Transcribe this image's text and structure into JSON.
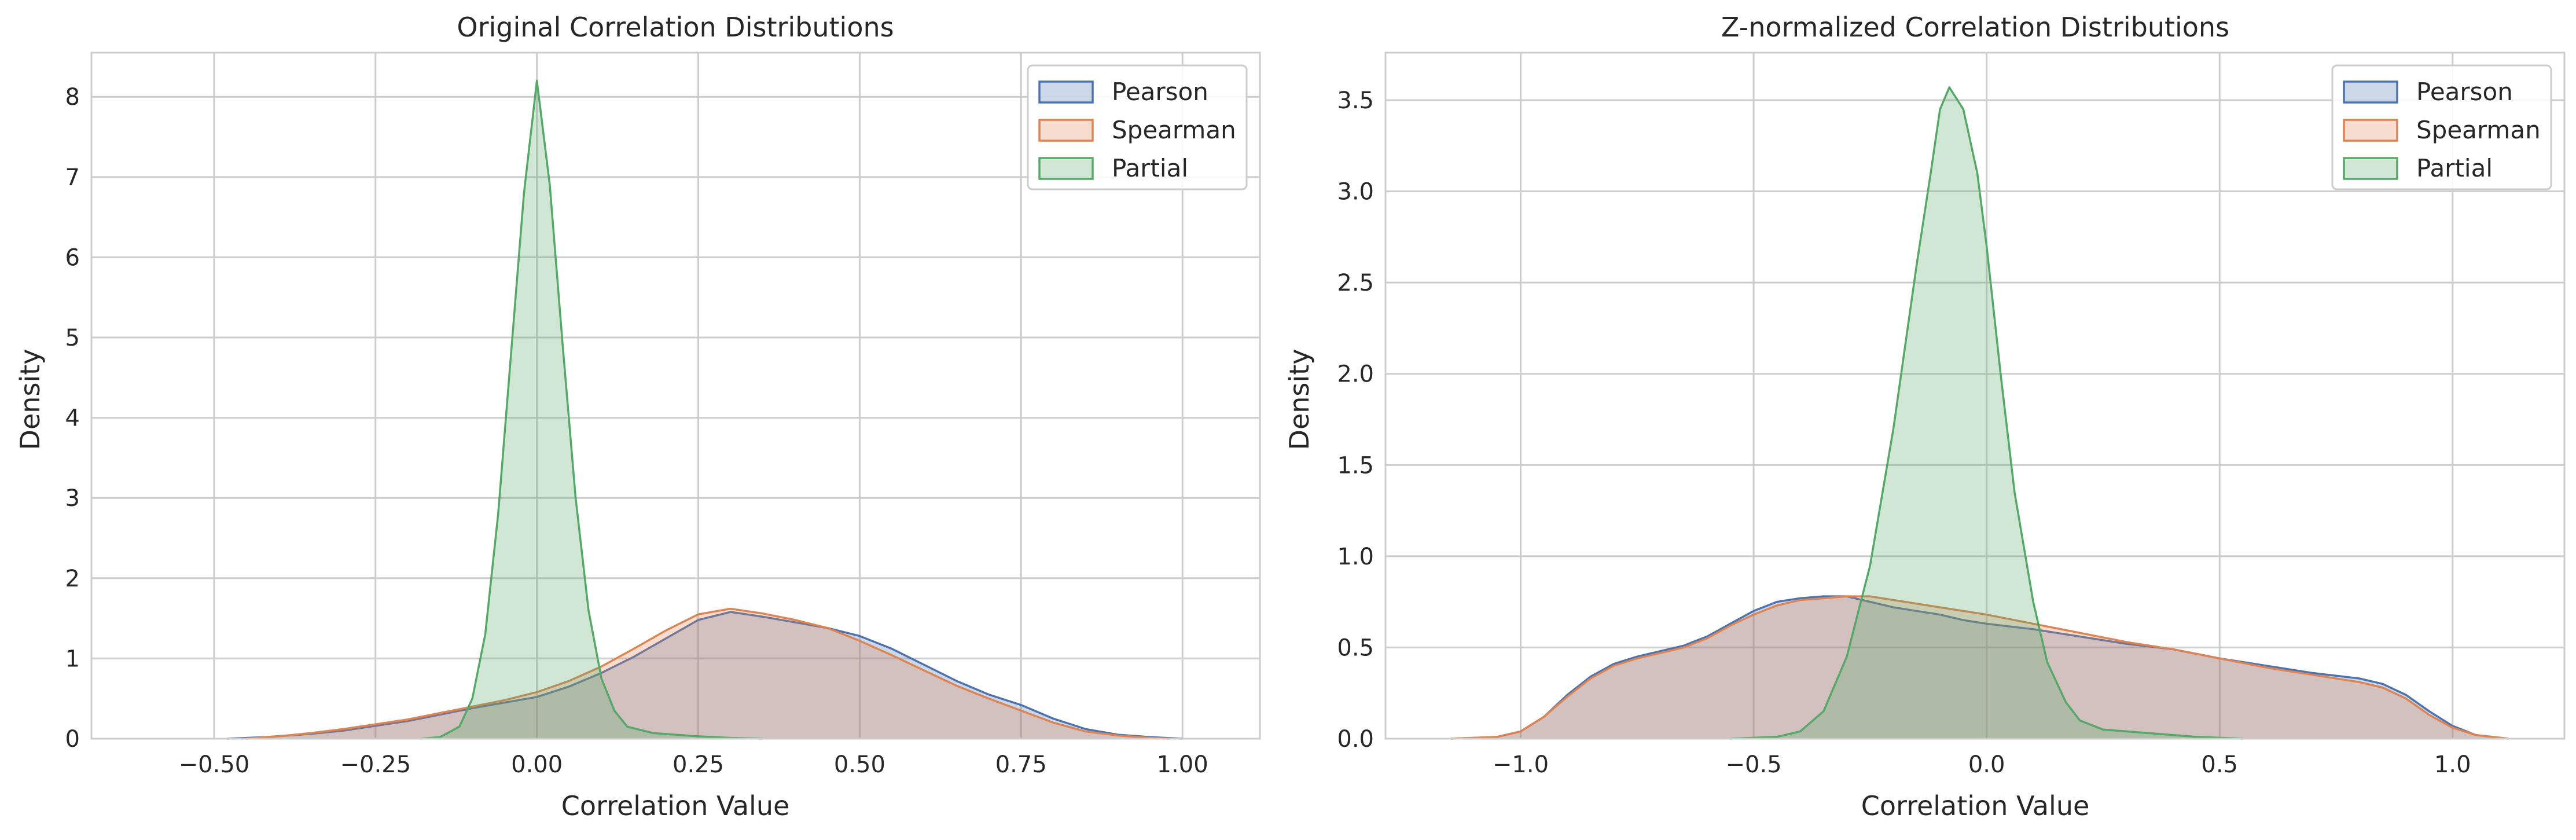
{
  "chart_data": [
    {
      "type": "area",
      "title": "Original Correlation Distributions",
      "xlabel": "Correlation Value",
      "ylabel": "Density",
      "xlim": [
        -0.69,
        1.12
      ],
      "ylim": [
        0,
        8.55
      ],
      "xticks": [
        -0.5,
        -0.25,
        0.0,
        0.25,
        0.5,
        0.75,
        1.0
      ],
      "xtick_labels": [
        "−0.50",
        "−0.25",
        "0.00",
        "0.25",
        "0.50",
        "0.75",
        "1.00"
      ],
      "yticks": [
        0,
        1,
        2,
        3,
        4,
        5,
        6,
        7,
        8
      ],
      "ytick_labels": [
        "0",
        "1",
        "2",
        "3",
        "4",
        "5",
        "6",
        "7",
        "8"
      ],
      "grid": true,
      "legend_position": "top-right",
      "series": [
        {
          "name": "Pearson",
          "color": "#4c72b0",
          "points": [
            [
              -0.48,
              0
            ],
            [
              -0.42,
              0.02
            ],
            [
              -0.35,
              0.06
            ],
            [
              -0.3,
              0.1
            ],
            [
              -0.25,
              0.16
            ],
            [
              -0.2,
              0.22
            ],
            [
              -0.15,
              0.3
            ],
            [
              -0.1,
              0.38
            ],
            [
              -0.05,
              0.45
            ],
            [
              0.0,
              0.52
            ],
            [
              0.05,
              0.65
            ],
            [
              0.1,
              0.82
            ],
            [
              0.15,
              1.02
            ],
            [
              0.2,
              1.25
            ],
            [
              0.25,
              1.48
            ],
            [
              0.3,
              1.58
            ],
            [
              0.35,
              1.52
            ],
            [
              0.4,
              1.45
            ],
            [
              0.45,
              1.38
            ],
            [
              0.5,
              1.28
            ],
            [
              0.55,
              1.12
            ],
            [
              0.6,
              0.92
            ],
            [
              0.65,
              0.72
            ],
            [
              0.7,
              0.55
            ],
            [
              0.75,
              0.42
            ],
            [
              0.8,
              0.25
            ],
            [
              0.85,
              0.12
            ],
            [
              0.9,
              0.05
            ],
            [
              0.95,
              0.02
            ],
            [
              1.0,
              0
            ]
          ]
        },
        {
          "name": "Spearman",
          "color": "#dd8452",
          "points": [
            [
              -0.45,
              0
            ],
            [
              -0.4,
              0.03
            ],
            [
              -0.35,
              0.07
            ],
            [
              -0.3,
              0.12
            ],
            [
              -0.25,
              0.18
            ],
            [
              -0.2,
              0.24
            ],
            [
              -0.15,
              0.32
            ],
            [
              -0.1,
              0.4
            ],
            [
              -0.05,
              0.48
            ],
            [
              0.0,
              0.58
            ],
            [
              0.05,
              0.72
            ],
            [
              0.1,
              0.9
            ],
            [
              0.15,
              1.12
            ],
            [
              0.2,
              1.35
            ],
            [
              0.25,
              1.55
            ],
            [
              0.3,
              1.62
            ],
            [
              0.35,
              1.56
            ],
            [
              0.4,
              1.48
            ],
            [
              0.45,
              1.38
            ],
            [
              0.5,
              1.22
            ],
            [
              0.55,
              1.04
            ],
            [
              0.6,
              0.85
            ],
            [
              0.65,
              0.66
            ],
            [
              0.7,
              0.5
            ],
            [
              0.75,
              0.35
            ],
            [
              0.8,
              0.2
            ],
            [
              0.85,
              0.09
            ],
            [
              0.9,
              0.04
            ],
            [
              0.95,
              0.01
            ],
            [
              0.98,
              0
            ]
          ]
        },
        {
          "name": "Partial",
          "color": "#55a868",
          "points": [
            [
              -0.18,
              0
            ],
            [
              -0.15,
              0.02
            ],
            [
              -0.12,
              0.15
            ],
            [
              -0.1,
              0.5
            ],
            [
              -0.08,
              1.3
            ],
            [
              -0.06,
              2.8
            ],
            [
              -0.04,
              4.8
            ],
            [
              -0.02,
              6.8
            ],
            [
              0.0,
              8.2
            ],
            [
              0.02,
              6.9
            ],
            [
              0.04,
              4.9
            ],
            [
              0.06,
              3.0
            ],
            [
              0.08,
              1.6
            ],
            [
              0.1,
              0.75
            ],
            [
              0.12,
              0.35
            ],
            [
              0.14,
              0.15
            ],
            [
              0.18,
              0.07
            ],
            [
              0.25,
              0.03
            ],
            [
              0.3,
              0.01
            ],
            [
              0.35,
              0
            ]
          ]
        }
      ]
    },
    {
      "type": "area",
      "title": "Z-normalized Correlation Distributions",
      "xlabel": "Correlation Value",
      "ylabel": "Density",
      "xlim": [
        -1.29,
        1.24
      ],
      "ylim": [
        0,
        3.76
      ],
      "xticks": [
        -1.0,
        -0.5,
        0.0,
        0.5,
        1.0
      ],
      "xtick_labels": [
        "−1.0",
        "−0.5",
        "0.0",
        "0.5",
        "1.0"
      ],
      "yticks": [
        0,
        0.5,
        1.0,
        1.5,
        2.0,
        2.5,
        3.0,
        3.5
      ],
      "ytick_labels": [
        "0.0",
        "0.5",
        "1.0",
        "1.5",
        "2.0",
        "2.5",
        "3.0",
        "3.5"
      ],
      "grid": true,
      "legend_position": "top-right",
      "series": [
        {
          "name": "Pearson",
          "color": "#4c72b0",
          "points": [
            [
              -1.15,
              0
            ],
            [
              -1.05,
              0.01
            ],
            [
              -1.0,
              0.04
            ],
            [
              -0.95,
              0.12
            ],
            [
              -0.9,
              0.24
            ],
            [
              -0.85,
              0.34
            ],
            [
              -0.8,
              0.41
            ],
            [
              -0.75,
              0.45
            ],
            [
              -0.7,
              0.48
            ],
            [
              -0.65,
              0.51
            ],
            [
              -0.6,
              0.56
            ],
            [
              -0.55,
              0.63
            ],
            [
              -0.5,
              0.7
            ],
            [
              -0.45,
              0.75
            ],
            [
              -0.4,
              0.77
            ],
            [
              -0.35,
              0.78
            ],
            [
              -0.3,
              0.78
            ],
            [
              -0.25,
              0.75
            ],
            [
              -0.2,
              0.72
            ],
            [
              -0.1,
              0.68
            ],
            [
              -0.05,
              0.65
            ],
            [
              0.0,
              0.63
            ],
            [
              0.1,
              0.6
            ],
            [
              0.2,
              0.56
            ],
            [
              0.3,
              0.52
            ],
            [
              0.4,
              0.49
            ],
            [
              0.5,
              0.44
            ],
            [
              0.6,
              0.4
            ],
            [
              0.7,
              0.36
            ],
            [
              0.8,
              0.33
            ],
            [
              0.85,
              0.3
            ],
            [
              0.9,
              0.24
            ],
            [
              0.95,
              0.15
            ],
            [
              1.0,
              0.07
            ],
            [
              1.05,
              0.02
            ],
            [
              1.12,
              0
            ]
          ]
        },
        {
          "name": "Spearman",
          "color": "#dd8452",
          "points": [
            [
              -1.15,
              0
            ],
            [
              -1.05,
              0.01
            ],
            [
              -1.0,
              0.04
            ],
            [
              -0.95,
              0.12
            ],
            [
              -0.9,
              0.23
            ],
            [
              -0.85,
              0.33
            ],
            [
              -0.8,
              0.4
            ],
            [
              -0.75,
              0.44
            ],
            [
              -0.7,
              0.47
            ],
            [
              -0.65,
              0.5
            ],
            [
              -0.6,
              0.55
            ],
            [
              -0.55,
              0.62
            ],
            [
              -0.5,
              0.68
            ],
            [
              -0.45,
              0.73
            ],
            [
              -0.4,
              0.76
            ],
            [
              -0.35,
              0.77
            ],
            [
              -0.3,
              0.78
            ],
            [
              -0.25,
              0.78
            ],
            [
              -0.2,
              0.76
            ],
            [
              -0.1,
              0.72
            ],
            [
              -0.05,
              0.7
            ],
            [
              0.0,
              0.68
            ],
            [
              0.1,
              0.63
            ],
            [
              0.2,
              0.58
            ],
            [
              0.3,
              0.53
            ],
            [
              0.4,
              0.49
            ],
            [
              0.5,
              0.44
            ],
            [
              0.6,
              0.39
            ],
            [
              0.7,
              0.35
            ],
            [
              0.8,
              0.31
            ],
            [
              0.85,
              0.28
            ],
            [
              0.9,
              0.22
            ],
            [
              0.95,
              0.13
            ],
            [
              1.0,
              0.06
            ],
            [
              1.05,
              0.02
            ],
            [
              1.12,
              0
            ]
          ]
        },
        {
          "name": "Partial",
          "color": "#55a868",
          "points": [
            [
              -0.55,
              0
            ],
            [
              -0.45,
              0.01
            ],
            [
              -0.4,
              0.04
            ],
            [
              -0.35,
              0.15
            ],
            [
              -0.3,
              0.45
            ],
            [
              -0.25,
              0.95
            ],
            [
              -0.2,
              1.7
            ],
            [
              -0.15,
              2.6
            ],
            [
              -0.12,
              3.1
            ],
            [
              -0.1,
              3.45
            ],
            [
              -0.08,
              3.57
            ],
            [
              -0.05,
              3.45
            ],
            [
              -0.02,
              3.1
            ],
            [
              0.0,
              2.7
            ],
            [
              0.03,
              2.0
            ],
            [
              0.06,
              1.35
            ],
            [
              0.1,
              0.75
            ],
            [
              0.13,
              0.42
            ],
            [
              0.17,
              0.2
            ],
            [
              0.2,
              0.1
            ],
            [
              0.25,
              0.05
            ],
            [
              0.35,
              0.03
            ],
            [
              0.45,
              0.01
            ],
            [
              0.55,
              0
            ]
          ]
        }
      ]
    }
  ]
}
